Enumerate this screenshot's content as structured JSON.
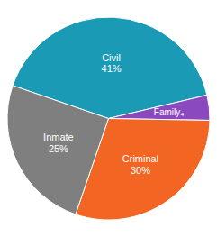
{
  "chart_data": {
    "type": "pie",
    "categories": [
      "Civil",
      "Family",
      "Criminal",
      "Inmate"
    ],
    "values": [
      41,
      4,
      30,
      25
    ],
    "value_labels": [
      "41%",
      "₄",
      "30%",
      "25%"
    ],
    "colors": [
      "#1a9ab5",
      "#8b49c0",
      "#f26522",
      "#7f7f7f"
    ],
    "data_labels": true
  }
}
